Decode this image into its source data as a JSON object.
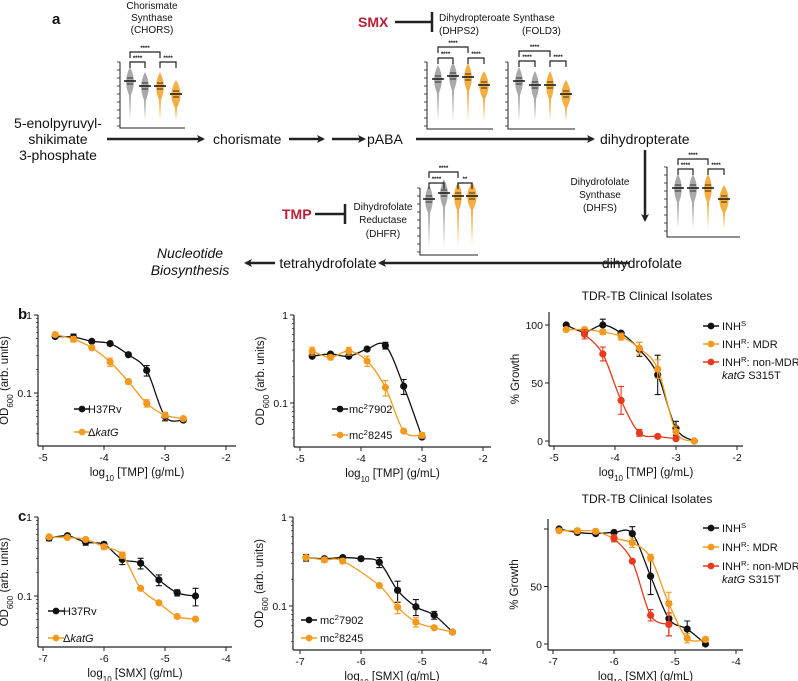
{
  "panel_labels": {
    "a": "a",
    "b": "b",
    "c": "c"
  },
  "pathway": {
    "start": [
      "5-enolpyruvyl-",
      "shikimate",
      "3-phosphate"
    ],
    "chorismate": "chorismate",
    "paba": "pABA",
    "dihydropterate": "dihydropterate",
    "dihydrofolate": "dihydrofolate",
    "tetrahydrofolate": "tetrahydrofolate",
    "nucleotide": [
      "Nucleotide",
      "Biosynthesis"
    ],
    "chors_label": [
      "Chorismate",
      "Synthase",
      "(CHORS)"
    ],
    "dhps_label": "Dihydropteroate Synthase",
    "dhps2": "(DHPS2)",
    "fold3": "(FOLD3)",
    "dhfs_label": [
      "Dihydrofolate",
      "Synthase",
      "(DHFS)"
    ],
    "dhfr_label": [
      "Dihydrofolate",
      "Reductase",
      "(DHFR)"
    ],
    "smx": "SMX",
    "tmp": "TMP",
    "drug_color": "#b81f37",
    "mini_plots": {
      "chors": {
        "stars": [
          "****",
          "****",
          "****"
        ]
      },
      "dhps2": {
        "stars": [
          "****",
          "****",
          "****"
        ]
      },
      "fold3": {
        "stars": [
          "****",
          "****",
          "****"
        ]
      },
      "dhfs": {
        "stars": [
          "****",
          "****",
          "****"
        ]
      },
      "dhfr": {
        "stars": [
          "****",
          "****",
          "**"
        ]
      }
    }
  },
  "chart_data": [
    {
      "panel": "b",
      "type": "scatter",
      "fit": "dose-response curve",
      "title": "",
      "xlabel": [
        [
          "log",
          ""
        ],
        [
          "10",
          "sub"
        ],
        [
          " [TMP] (g/mL)",
          ""
        ]
      ],
      "ylabel": [
        [
          "OD",
          ""
        ],
        [
          "600",
          "sub"
        ],
        [
          " (arb. units)",
          ""
        ]
      ],
      "xlim": [
        -5,
        -2
      ],
      "xticks": [
        -5,
        -4,
        -3,
        -2
      ],
      "xtick_labels": [
        "-5",
        "-4",
        "-3",
        "-2"
      ],
      "yscale": "log",
      "yticks": [
        1,
        0.1
      ],
      "ytick_labels": [
        "1",
        "0.1"
      ],
      "legend": "bottom-left",
      "series": [
        {
          "label": [
            [
              "H37Rv",
              ""
            ]
          ],
          "color": "#111111",
          "x": [
            -4.8,
            -4.5,
            -4.2,
            -3.9,
            -3.6,
            -3.3,
            -3.0,
            -2.7
          ],
          "y": [
            0.53,
            0.52,
            0.46,
            0.43,
            0.31,
            0.195,
            0.05,
            0.045
          ],
          "err": [
            0.02,
            0.05,
            0,
            0,
            0,
            0.03,
            0.006,
            0
          ]
        },
        {
          "label": [
            [
              "Δ",
              ""
            ],
            [
              "katG",
              "i"
            ]
          ],
          "color": "#f39a1e",
          "x": [
            -4.8,
            -4.5,
            -4.2,
            -3.9,
            -3.6,
            -3.3,
            -3.0,
            -2.7
          ],
          "y": [
            0.56,
            0.49,
            0.38,
            0.25,
            0.14,
            0.074,
            0.052,
            0.047
          ],
          "err": [
            0.03,
            0.04,
            0.02,
            0.03,
            0.01,
            0.008,
            0.004,
            0
          ]
        }
      ]
    },
    {
      "panel": "b",
      "type": "scatter",
      "fit": "dose-response curve",
      "title": "",
      "xlabel": [
        [
          "log",
          ""
        ],
        [
          "10",
          "sub"
        ],
        [
          " [TMP] (g/mL)",
          ""
        ]
      ],
      "ylabel": [
        [
          "OD",
          ""
        ],
        [
          "600",
          "sub"
        ],
        [
          " (arb. units)",
          ""
        ]
      ],
      "xlim": [
        -5,
        -2
      ],
      "xticks": [
        -5,
        -4,
        -3,
        -2
      ],
      "xtick_labels": [
        "-5",
        "-4",
        "-3",
        "-2"
      ],
      "yscale": "log",
      "yticks": [
        1,
        0.1
      ],
      "ytick_labels": [
        "1",
        "0.1"
      ],
      "legend": "bottom-left",
      "series": [
        {
          "label": [
            [
              "mc",
              ""
            ],
            [
              "2",
              "sup"
            ],
            [
              "7902",
              ""
            ]
          ],
          "color": "#111111",
          "x": [
            -4.8,
            -4.5,
            -4.2,
            -3.9,
            -3.6,
            -3.3,
            -3.0
          ],
          "y": [
            0.34,
            0.36,
            0.34,
            0.41,
            0.45,
            0.155,
            0.041
          ],
          "err": [
            0,
            0,
            0,
            0,
            0.04,
            0.03,
            0
          ]
        },
        {
          "label": [
            [
              "mc",
              ""
            ],
            [
              "2",
              "sup"
            ],
            [
              "8245",
              ""
            ]
          ],
          "color": "#f39a1e",
          "x": [
            -4.8,
            -4.5,
            -4.2,
            -3.9,
            -3.6,
            -3.3,
            -3.0
          ],
          "y": [
            0.39,
            0.33,
            0.39,
            0.3,
            0.15,
            0.048,
            0.043
          ],
          "err": [
            0.04,
            0.02,
            0.04,
            0.04,
            0.03,
            0,
            0.003
          ]
        }
      ]
    },
    {
      "panel": "b",
      "type": "scatter",
      "fit": "dose-response curve",
      "title": "TDR-TB Clinical Isolates",
      "xlabel": [
        [
          "log",
          ""
        ],
        [
          "10",
          "sub"
        ],
        [
          " [TMP] (g/mL)",
          ""
        ]
      ],
      "ylabel": [
        [
          "% Growth",
          ""
        ]
      ],
      "xlim": [
        -5,
        -2
      ],
      "xticks": [
        -5,
        -4,
        -3,
        -2
      ],
      "xtick_labels": [
        "-5",
        "-4",
        "-3",
        "-2"
      ],
      "yscale": "linear",
      "ylim": [
        0,
        100
      ],
      "yticks": [
        0,
        50,
        100
      ],
      "ytick_labels": [
        "0",
        "50",
        "100"
      ],
      "legend": "right",
      "series": [
        {
          "label": [
            [
              "INH",
              ""
            ],
            [
              "S",
              "sup"
            ]
          ],
          "color": "#111111",
          "x": [
            -4.8,
            -4.5,
            -4.2,
            -3.9,
            -3.6,
            -3.3,
            -3.0,
            -2.7
          ],
          "y": [
            100,
            94,
            100,
            93,
            79,
            57,
            11,
            0
          ],
          "err": [
            0,
            3,
            5,
            0,
            6,
            17,
            6,
            0
          ]
        },
        {
          "label": [
            [
              "INH",
              ""
            ],
            [
              "R",
              "sup"
            ],
            [
              ": MDR",
              ""
            ]
          ],
          "color": "#f39a1e",
          "x": [
            -4.8,
            -4.5,
            -4.2,
            -3.9,
            -3.6,
            -3.3,
            -3.0,
            -2.7
          ],
          "y": [
            96,
            96,
            94,
            90,
            80,
            62,
            8,
            0
          ],
          "err": [
            0,
            2,
            2,
            3,
            5,
            8,
            5,
            0
          ]
        },
        {
          "label": [
            [
              "INH",
              ""
            ],
            [
              "R",
              "sup"
            ],
            [
              ": non-MDR",
              ""
            ]
          ],
          "label2": [
            [
              "katG",
              "i"
            ],
            [
              " S315T",
              ""
            ]
          ],
          "color": "#e8391d",
          "x": [
            -4.5,
            -4.2,
            -3.9,
            -3.6,
            -3.3,
            -3.0
          ],
          "y": [
            92,
            75,
            35,
            7,
            4,
            2
          ],
          "err": [
            4,
            6,
            12,
            3,
            0,
            0
          ]
        }
      ]
    },
    {
      "panel": "c",
      "type": "scatter",
      "fit": "dose-response curve",
      "title": "",
      "xlabel": [
        [
          "log",
          ""
        ],
        [
          "10",
          "sub"
        ],
        [
          " [SMX] (g/mL)",
          ""
        ]
      ],
      "ylabel": [
        [
          "OD",
          ""
        ],
        [
          "600",
          "sub"
        ],
        [
          " (arb. units)",
          ""
        ]
      ],
      "xlim": [
        -7,
        -4
      ],
      "xticks": [
        -7,
        -6,
        -5,
        -4
      ],
      "xtick_labels": [
        "-7",
        "-6",
        "-5",
        "-4"
      ],
      "yscale": "log",
      "yticks": [
        1,
        0.1
      ],
      "ytick_labels": [
        "1",
        "0.1"
      ],
      "legend": "bottom-left",
      "series": [
        {
          "label": [
            [
              "H37Rv",
              ""
            ]
          ],
          "color": "#111111",
          "x": [
            -6.9,
            -6.6,
            -6.3,
            -6.0,
            -5.7,
            -5.4,
            -5.1,
            -4.8,
            -4.5
          ],
          "y": [
            0.54,
            0.58,
            0.48,
            0.45,
            0.29,
            0.26,
            0.16,
            0.11,
            0.1
          ],
          "err": [
            0.04,
            0,
            0.04,
            0.03,
            0.04,
            0.04,
            0.025,
            0.01,
            0.025
          ]
        },
        {
          "label": [
            [
              "Δ",
              ""
            ],
            [
              "katG",
              "i"
            ]
          ],
          "color": "#f39a1e",
          "x": [
            -6.9,
            -6.6,
            -6.3,
            -6.0,
            -5.7,
            -5.4,
            -5.1,
            -4.8,
            -4.5
          ],
          "y": [
            0.56,
            0.55,
            0.52,
            0.42,
            0.33,
            0.125,
            0.082,
            0.055,
            0.051
          ],
          "err": [
            0.03,
            0,
            0.02,
            0.03,
            0.03,
            0,
            0,
            0,
            0
          ]
        }
      ]
    },
    {
      "panel": "c",
      "type": "scatter",
      "fit": "dose-response curve",
      "title": "",
      "xlabel": [
        [
          "log",
          ""
        ],
        [
          "10",
          "sub"
        ],
        [
          " [SMX] (g/mL)",
          ""
        ]
      ],
      "ylabel": [
        [
          "OD",
          ""
        ],
        [
          "600",
          "sub"
        ],
        [
          " (arb. units)",
          ""
        ]
      ],
      "xlim": [
        -7,
        -4
      ],
      "xticks": [
        -7,
        -6,
        -5,
        -4
      ],
      "xtick_labels": [
        "-7",
        "-6",
        "-5",
        "-4"
      ],
      "yscale": "log",
      "yticks": [
        1,
        0.1
      ],
      "ytick_labels": [
        "1",
        "0.1"
      ],
      "legend": "bottom-left",
      "series": [
        {
          "label": [
            [
              "mc",
              ""
            ],
            [
              "2",
              "sup"
            ],
            [
              "7902",
              ""
            ]
          ],
          "color": "#111111",
          "x": [
            -6.9,
            -6.6,
            -6.3,
            -6.0,
            -5.7,
            -5.4,
            -5.1,
            -4.8,
            -4.5
          ],
          "y": [
            0.35,
            0.34,
            0.35,
            0.34,
            0.31,
            0.15,
            0.098,
            0.079,
            0.051
          ],
          "err": [
            0.03,
            0,
            0,
            0,
            0.04,
            0.04,
            0.02,
            0.008,
            0
          ]
        },
        {
          "label": [
            [
              "mc",
              ""
            ],
            [
              "2",
              "sup"
            ],
            [
              "8245",
              ""
            ]
          ],
          "color": "#f39a1e",
          "x": [
            -6.9,
            -6.6,
            -6.3,
            -5.7,
            -5.4,
            -5.1,
            -4.8,
            -4.5
          ],
          "y": [
            0.35,
            0.33,
            0.32,
            0.17,
            0.097,
            0.066,
            0.057,
            0.051
          ],
          "err": [
            0.02,
            0.02,
            0.02,
            0,
            0.015,
            0.008,
            0,
            0
          ]
        }
      ]
    },
    {
      "panel": "c",
      "type": "scatter",
      "fit": "dose-response curve",
      "title": "TDR-TB Clinical Isolates",
      "xlabel": [
        [
          "log",
          ""
        ],
        [
          "10",
          "sub"
        ],
        [
          " [SMX] (g/mL)",
          ""
        ]
      ],
      "ylabel": [
        [
          "% Growth",
          ""
        ]
      ],
      "xlim": [
        -7,
        -4
      ],
      "xticks": [
        -7,
        -6,
        -5,
        -4
      ],
      "xtick_labels": [
        "-7",
        "-6",
        "-5",
        "-4"
      ],
      "yscale": "linear",
      "ylim": [
        0,
        100
      ],
      "yticks": [
        0,
        50,
        100
      ],
      "ytick_labels": [
        "0",
        "50",
        ""
      ],
      "legend": "right",
      "series": [
        {
          "label": [
            [
              "INH",
              ""
            ],
            [
              "S",
              "sup"
            ]
          ],
          "color": "#111111",
          "x": [
            -6.9,
            -6.6,
            -6.3,
            -6.0,
            -5.7,
            -5.4,
            -5.1,
            -4.8,
            -4.5
          ],
          "y": [
            100,
            97,
            96,
            97,
            96,
            59,
            22,
            13,
            0
          ],
          "err": [
            0,
            0,
            0,
            0,
            6,
            16,
            15,
            7,
            0
          ]
        },
        {
          "label": [
            [
              "INH",
              ""
            ],
            [
              "R",
              "sup"
            ],
            [
              ": MDR",
              ""
            ]
          ],
          "color": "#f39a1e",
          "x": [
            -6.9,
            -6.6,
            -6.3,
            -6.0,
            -5.7,
            -5.4,
            -5.1,
            -4.8,
            -4.5
          ],
          "y": [
            98.5,
            98.5,
            98,
            92,
            88,
            75,
            35,
            5,
            4
          ],
          "err": [
            0,
            2,
            2,
            3,
            4,
            3,
            10,
            4,
            2
          ]
        },
        {
          "label": [
            [
              "INH",
              ""
            ],
            [
              "R",
              "sup"
            ],
            [
              ": non-MDR",
              ""
            ]
          ],
          "label2": [
            [
              "katG",
              "i"
            ],
            [
              " S315T",
              ""
            ]
          ],
          "color": "#e8391d",
          "x": [
            -6.0,
            -5.7,
            -5.4,
            -5.1
          ],
          "y": [
            92,
            72,
            25,
            17
          ],
          "err": [
            3,
            0,
            5,
            10
          ]
        }
      ]
    }
  ]
}
